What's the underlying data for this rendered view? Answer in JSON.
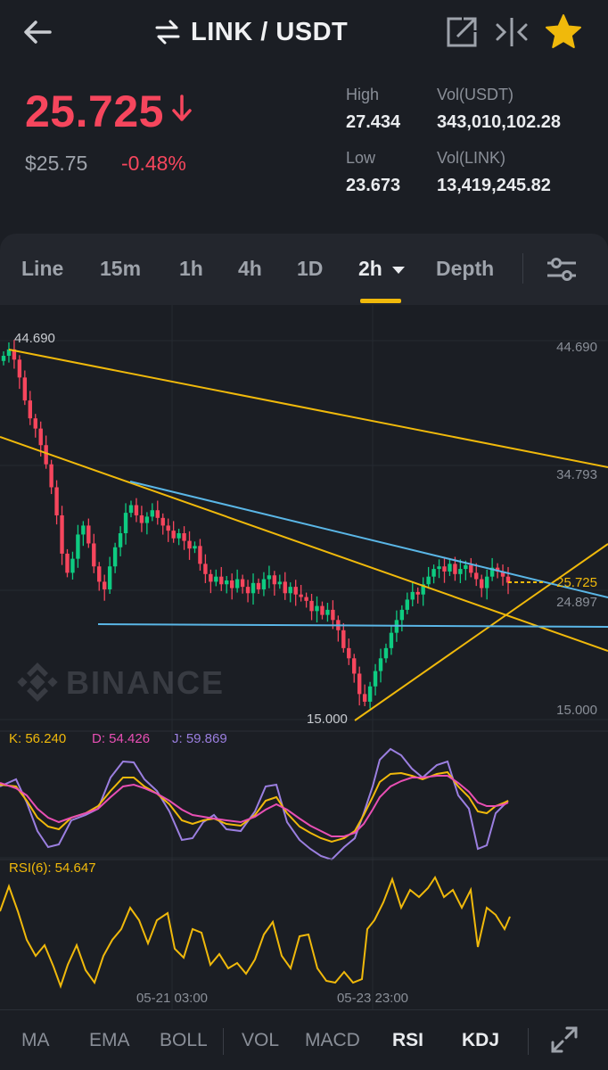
{
  "header": {
    "pair": "LINK / USDT",
    "icons": [
      "back-arrow-icon",
      "swap-icon",
      "external-link-icon",
      "compare-icon",
      "favorite-star-icon"
    ],
    "star_color": "#f0b90b"
  },
  "ticker": {
    "last_price": "25.725",
    "usd_price": "$25.75",
    "change": "-0.48%",
    "high_label": "High",
    "high": "27.434",
    "low_label": "Low",
    "low": "23.673",
    "vol_usdt_label": "Vol(USDT)",
    "vol_usdt": "343,010,102.28",
    "vol_link_label": "Vol(LINK)",
    "vol_link": "13,419,245.82",
    "down_color": "#f6465d",
    "up_color": "#0ecb81"
  },
  "tabs": {
    "items": [
      "Line",
      "15m",
      "1h",
      "4h",
      "1D",
      "2h",
      "Depth"
    ],
    "active": "2h",
    "accent": "#f0b90b"
  },
  "chart": {
    "watermark": "BINANCE",
    "price_axis": [
      "44.690",
      "34.793",
      "25.725",
      "24.897",
      "15.000"
    ],
    "max_label": "44.690",
    "min_label": "15.000",
    "current_price_label": "25.725",
    "time_axis": [
      "05-21 03:00",
      "05-23 23:00"
    ],
    "kdj": {
      "k_label": "K: 56.240",
      "d_label": "D: 54.426",
      "j_label": "J: 59.869",
      "k_color": "#f0b90b",
      "d_color": "#e84fb4",
      "j_color": "#9b7fe0"
    },
    "rsi": {
      "label": "RSI(6): 54.647",
      "color": "#f0b90b"
    }
  },
  "chart_data": {
    "type": "candlestick",
    "symbol": "LINK / USDT",
    "interval": "2h",
    "ylim": [
      15.0,
      44.69
    ],
    "closes": [
      43.5,
      44.0,
      43.2,
      41.8,
      40.0,
      38.6,
      37.8,
      36.5,
      35.0,
      33.2,
      31.0,
      28.0,
      26.5,
      27.6,
      29.5,
      30.2,
      28.8,
      27.0,
      25.8,
      25.2,
      27.0,
      28.5,
      29.6,
      31.2,
      31.8,
      31.0,
      30.4,
      30.9,
      31.4,
      30.8,
      30.2,
      29.8,
      29.2,
      29.6,
      29.0,
      28.4,
      28.6,
      27.2,
      26.4,
      25.8,
      26.2,
      25.6,
      25.9,
      25.3,
      26.0,
      25.4,
      24.9,
      25.7,
      25.2,
      26.0,
      26.3,
      25.6,
      25.8,
      24.9,
      25.4,
      24.8,
      24.6,
      24.3,
      23.5,
      23.9,
      23.2,
      23.6,
      22.8,
      22.0,
      20.6,
      19.8,
      18.6,
      17.0,
      16.4,
      17.6,
      18.8,
      19.8,
      20.6,
      21.8,
      22.8,
      23.6,
      24.4,
      25.0,
      24.8,
      25.6,
      26.2,
      26.8,
      27.0,
      26.6,
      27.2,
      26.4,
      26.8,
      27.1,
      26.5,
      26.0,
      25.3,
      26.2,
      26.9,
      26.6,
      26.2,
      25.725
    ],
    "overlays": [
      {
        "type": "trendline",
        "color": "#f0b90b"
      },
      {
        "type": "trendline",
        "color": "#f0b90b"
      },
      {
        "type": "trendline",
        "color": "#f0b90b"
      },
      {
        "type": "trendline",
        "color": "#5ab6e6"
      },
      {
        "type": "horizontal",
        "color": "#5ab6e6"
      }
    ]
  },
  "indicators": {
    "items": [
      "MA",
      "EMA",
      "BOLL",
      "VOL",
      "MACD",
      "RSI",
      "KDJ"
    ],
    "active": [
      "RSI",
      "KDJ"
    ],
    "fullscreen_icon": "fullscreen-icon"
  }
}
